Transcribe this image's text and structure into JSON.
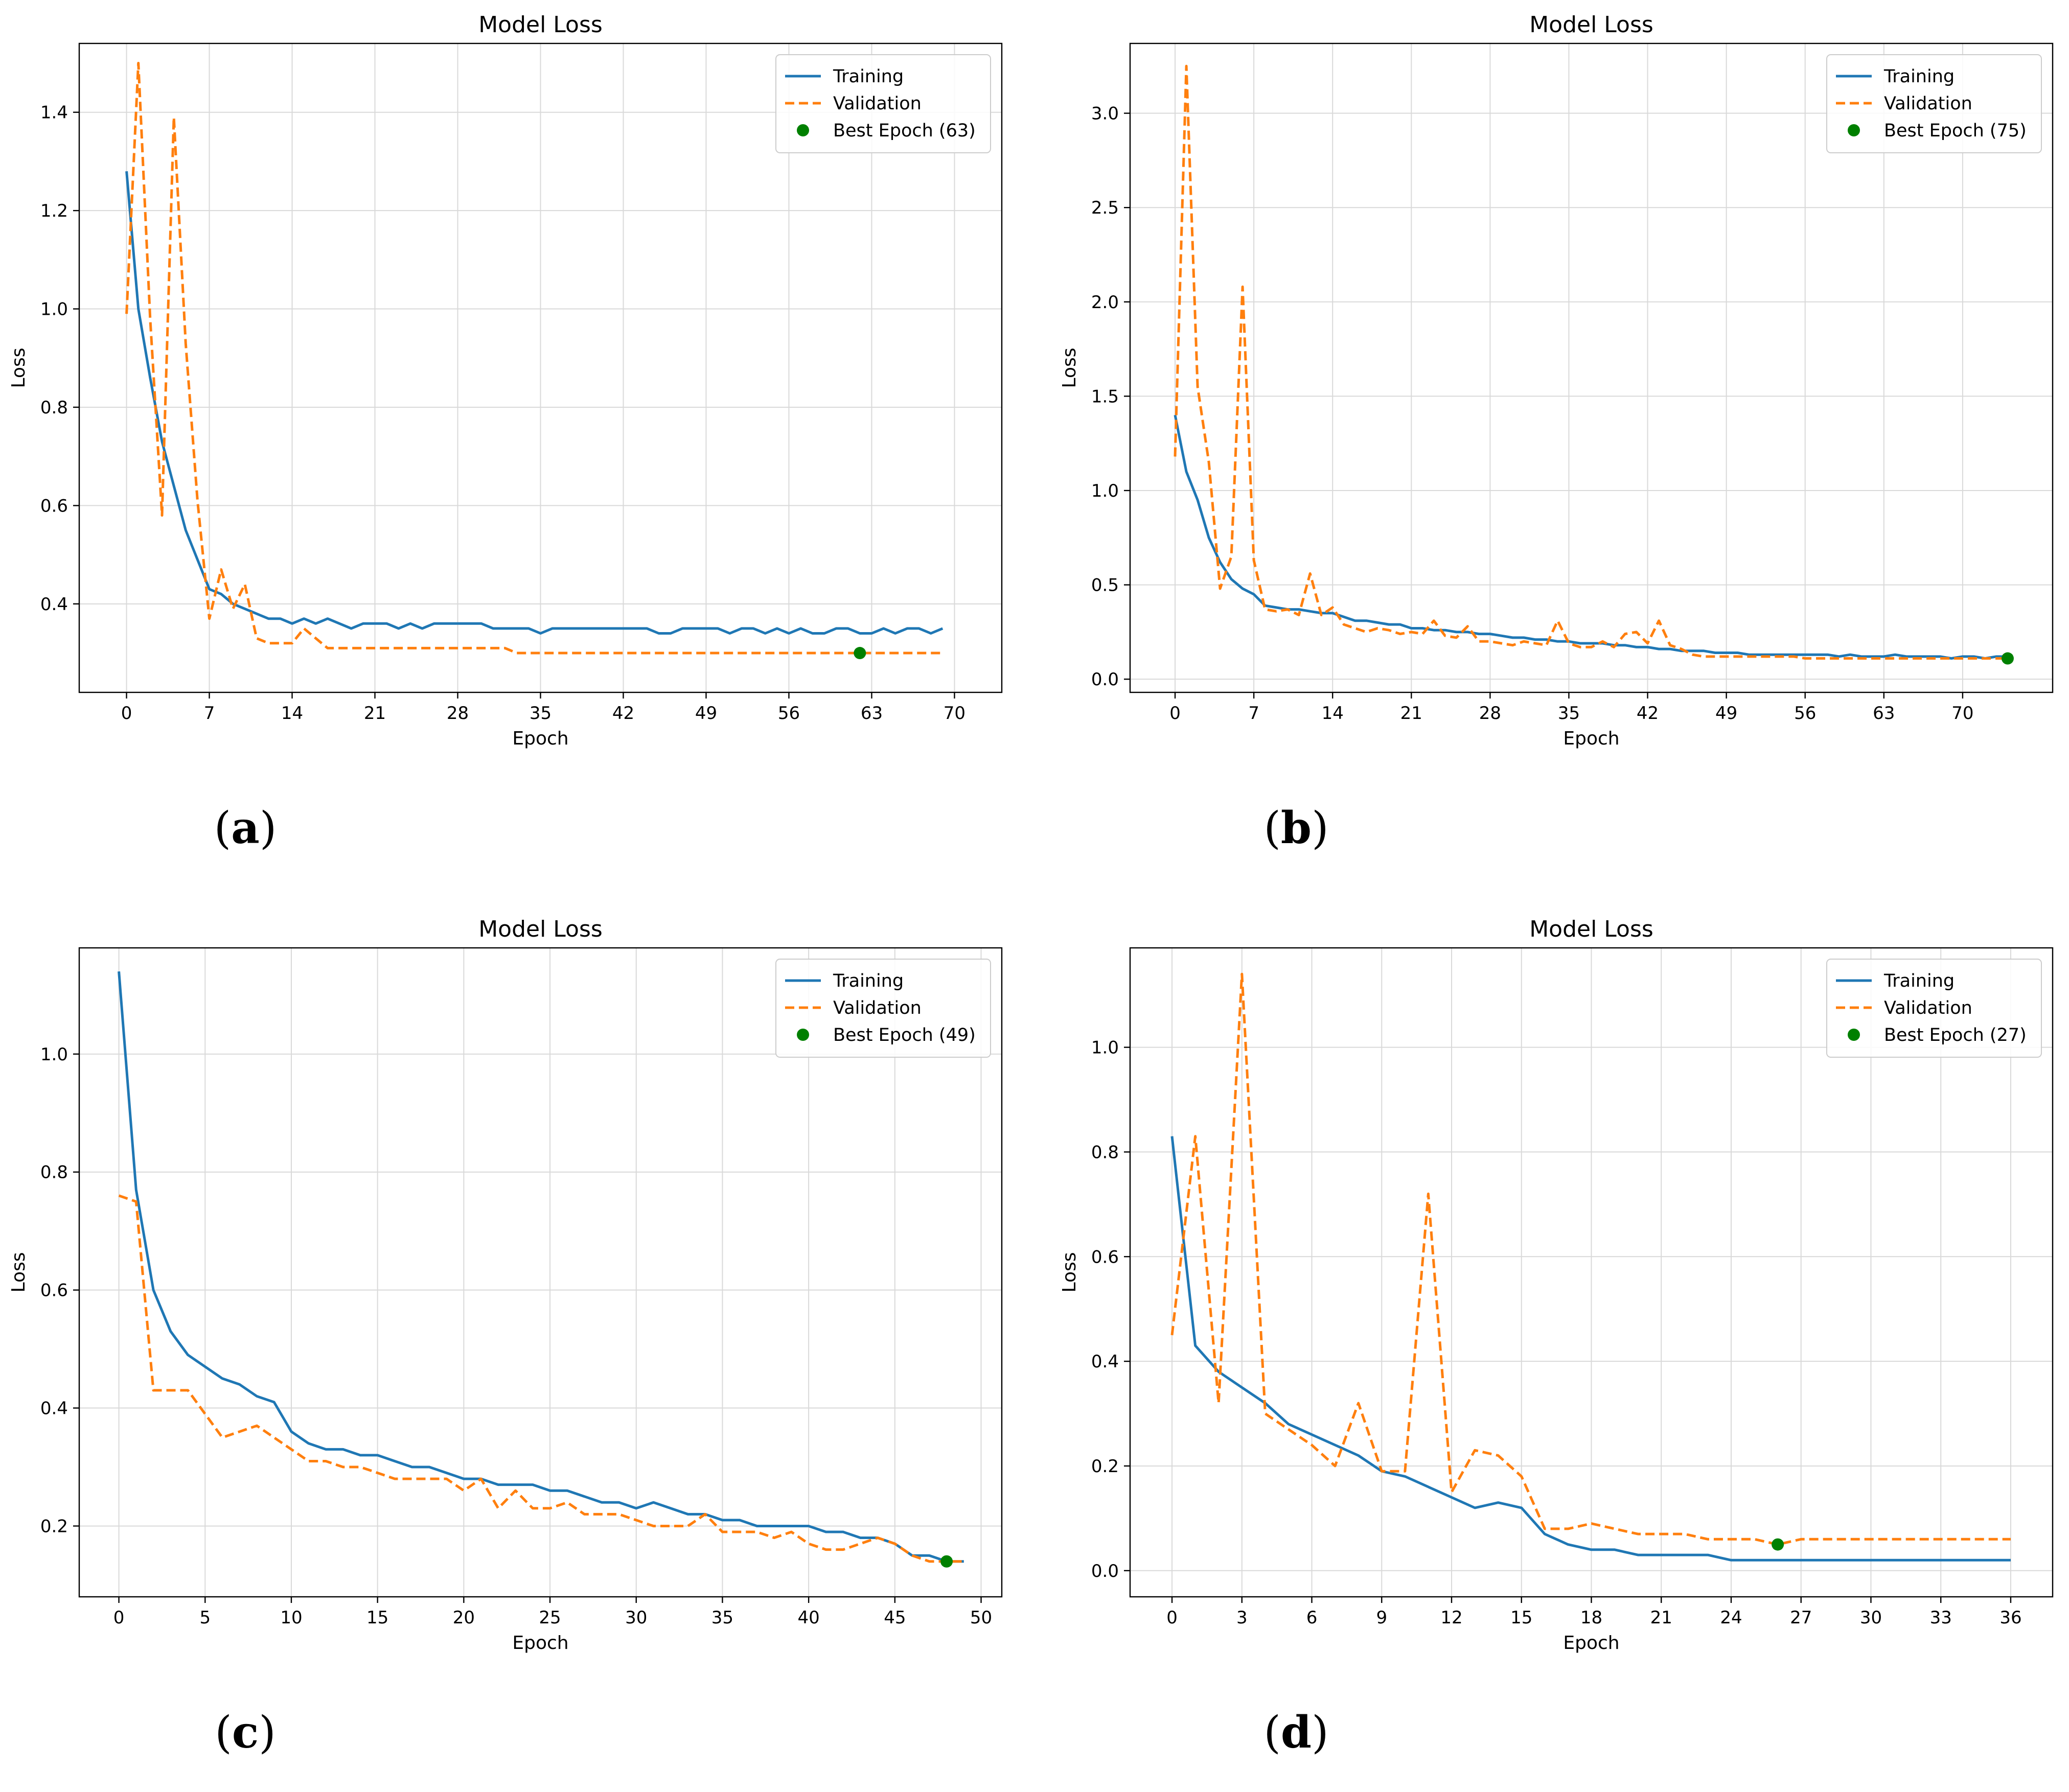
{
  "colors": {
    "training": "#1f77b4",
    "validation": "#ff7f0e",
    "best": "#008000"
  },
  "chart_data": [
    {
      "id": "a",
      "caption": "a",
      "type": "line",
      "title": "Model Loss",
      "xlabel": "Epoch",
      "ylabel": "Loss",
      "xlim": [
        -4,
        74
      ],
      "ylim": [
        0.22,
        1.54
      ],
      "xticks": [
        0,
        7,
        14,
        21,
        28,
        35,
        42,
        49,
        56,
        63,
        70
      ],
      "yticks": [
        0.4,
        0.6,
        0.8,
        1.0,
        1.2,
        1.4
      ],
      "ytick_decimals": 1,
      "legend": {
        "training": "Training",
        "validation": "Validation",
        "best": "Best Epoch (63)"
      },
      "series": [
        {
          "name": "Training",
          "values": [
            1.28,
            1.0,
            0.86,
            0.73,
            0.64,
            0.55,
            0.49,
            0.43,
            0.42,
            0.4,
            0.39,
            0.38,
            0.37,
            0.37,
            0.36,
            0.37,
            0.36,
            0.37,
            0.36,
            0.35,
            0.36,
            0.36,
            0.36,
            0.35,
            0.36,
            0.35,
            0.36,
            0.36,
            0.36,
            0.36,
            0.36,
            0.35,
            0.35,
            0.35,
            0.35,
            0.34,
            0.35,
            0.35,
            0.35,
            0.35,
            0.35,
            0.35,
            0.35,
            0.35,
            0.35,
            0.34,
            0.34,
            0.35,
            0.35,
            0.35,
            0.35,
            0.34,
            0.35,
            0.35,
            0.34,
            0.35,
            0.34,
            0.35,
            0.34,
            0.34,
            0.35,
            0.35,
            0.34,
            0.34,
            0.35,
            0.34,
            0.35,
            0.35,
            0.34,
            0.35
          ]
        },
        {
          "name": "Validation",
          "values": [
            0.99,
            1.5,
            0.98,
            0.58,
            1.39,
            0.93,
            0.61,
            0.37,
            0.47,
            0.39,
            0.44,
            0.33,
            0.32,
            0.32,
            0.32,
            0.35,
            0.33,
            0.31,
            0.31,
            0.31,
            0.31,
            0.31,
            0.31,
            0.31,
            0.31,
            0.31,
            0.31,
            0.31,
            0.31,
            0.31,
            0.31,
            0.31,
            0.31,
            0.3,
            0.3,
            0.3,
            0.3,
            0.3,
            0.3,
            0.3,
            0.3,
            0.3,
            0.3,
            0.3,
            0.3,
            0.3,
            0.3,
            0.3,
            0.3,
            0.3,
            0.3,
            0.3,
            0.3,
            0.3,
            0.3,
            0.3,
            0.3,
            0.3,
            0.3,
            0.3,
            0.3,
            0.3,
            0.3,
            0.3,
            0.3,
            0.3,
            0.3,
            0.3,
            0.3,
            0.3
          ]
        }
      ],
      "best_epoch": {
        "x": 62,
        "y": 0.3
      }
    },
    {
      "id": "b",
      "caption": "b",
      "type": "line",
      "title": "Model Loss",
      "xlabel": "Epoch",
      "ylabel": "Loss",
      "xlim": [
        -4,
        78
      ],
      "ylim": [
        -0.07,
        3.37
      ],
      "xticks": [
        0,
        7,
        14,
        21,
        28,
        35,
        42,
        49,
        56,
        63,
        70
      ],
      "yticks": [
        0.0,
        0.5,
        1.0,
        1.5,
        2.0,
        2.5,
        3.0
      ],
      "ytick_decimals": 1,
      "legend": {
        "training": "Training",
        "validation": "Validation",
        "best": "Best Epoch (75)"
      },
      "series": [
        {
          "name": "Training",
          "values": [
            1.4,
            1.1,
            0.95,
            0.75,
            0.62,
            0.53,
            0.48,
            0.45,
            0.39,
            0.38,
            0.37,
            0.37,
            0.36,
            0.35,
            0.35,
            0.33,
            0.31,
            0.31,
            0.3,
            0.29,
            0.29,
            0.27,
            0.27,
            0.26,
            0.26,
            0.25,
            0.25,
            0.24,
            0.24,
            0.23,
            0.22,
            0.22,
            0.21,
            0.21,
            0.2,
            0.2,
            0.19,
            0.19,
            0.19,
            0.18,
            0.18,
            0.17,
            0.17,
            0.16,
            0.16,
            0.15,
            0.15,
            0.15,
            0.14,
            0.14,
            0.14,
            0.13,
            0.13,
            0.13,
            0.13,
            0.13,
            0.13,
            0.13,
            0.13,
            0.12,
            0.13,
            0.12,
            0.12,
            0.12,
            0.13,
            0.12,
            0.12,
            0.12,
            0.12,
            0.11,
            0.12,
            0.12,
            0.11,
            0.12,
            0.12
          ]
        },
        {
          "name": "Validation",
          "values": [
            1.18,
            3.25,
            1.55,
            1.15,
            0.48,
            0.65,
            2.08,
            0.63,
            0.37,
            0.36,
            0.37,
            0.34,
            0.56,
            0.34,
            0.38,
            0.29,
            0.27,
            0.25,
            0.27,
            0.26,
            0.24,
            0.25,
            0.24,
            0.31,
            0.23,
            0.22,
            0.28,
            0.2,
            0.2,
            0.19,
            0.18,
            0.2,
            0.19,
            0.18,
            0.31,
            0.19,
            0.17,
            0.17,
            0.2,
            0.17,
            0.24,
            0.25,
            0.19,
            0.31,
            0.18,
            0.16,
            0.13,
            0.12,
            0.12,
            0.12,
            0.12,
            0.12,
            0.12,
            0.12,
            0.12,
            0.12,
            0.11,
            0.11,
            0.11,
            0.11,
            0.11,
            0.11,
            0.11,
            0.11,
            0.11,
            0.11,
            0.11,
            0.11,
            0.11,
            0.11,
            0.11,
            0.11,
            0.11,
            0.11,
            0.11
          ]
        }
      ],
      "best_epoch": {
        "x": 74,
        "y": 0.11
      }
    },
    {
      "id": "c",
      "caption": "c",
      "type": "line",
      "title": "Model Loss",
      "xlabel": "Epoch",
      "ylabel": "Loss",
      "xlim": [
        -2.3,
        51.2
      ],
      "ylim": [
        0.08,
        1.18
      ],
      "xticks": [
        0,
        5,
        10,
        15,
        20,
        25,
        30,
        35,
        40,
        45,
        50
      ],
      "yticks": [
        0.2,
        0.4,
        0.6,
        0.8,
        1.0
      ],
      "ytick_decimals": 1,
      "legend": {
        "training": "Training",
        "validation": "Validation",
        "best": "Best Epoch (49)"
      },
      "series": [
        {
          "name": "Training",
          "values": [
            1.14,
            0.77,
            0.6,
            0.53,
            0.49,
            0.47,
            0.45,
            0.44,
            0.42,
            0.41,
            0.36,
            0.34,
            0.33,
            0.33,
            0.32,
            0.32,
            0.31,
            0.3,
            0.3,
            0.29,
            0.28,
            0.28,
            0.27,
            0.27,
            0.27,
            0.26,
            0.26,
            0.25,
            0.24,
            0.24,
            0.23,
            0.24,
            0.23,
            0.22,
            0.22,
            0.21,
            0.21,
            0.2,
            0.2,
            0.2,
            0.2,
            0.19,
            0.19,
            0.18,
            0.18,
            0.17,
            0.15,
            0.15,
            0.14,
            0.14
          ]
        },
        {
          "name": "Validation",
          "values": [
            0.76,
            0.75,
            0.43,
            0.43,
            0.43,
            0.39,
            0.35,
            0.36,
            0.37,
            0.35,
            0.33,
            0.31,
            0.31,
            0.3,
            0.3,
            0.29,
            0.28,
            0.28,
            0.28,
            0.28,
            0.26,
            0.28,
            0.23,
            0.26,
            0.23,
            0.23,
            0.24,
            0.22,
            0.22,
            0.22,
            0.21,
            0.2,
            0.2,
            0.2,
            0.22,
            0.19,
            0.19,
            0.19,
            0.18,
            0.19,
            0.17,
            0.16,
            0.16,
            0.17,
            0.18,
            0.17,
            0.15,
            0.14,
            0.14,
            0.14
          ]
        }
      ],
      "best_epoch": {
        "x": 48,
        "y": 0.14
      }
    },
    {
      "id": "d",
      "caption": "d",
      "type": "line",
      "title": "Model Loss",
      "xlabel": "Epoch",
      "ylabel": "Loss",
      "xlim": [
        -1.8,
        37.8
      ],
      "ylim": [
        -0.05,
        1.19
      ],
      "xticks": [
        0,
        3,
        6,
        9,
        12,
        15,
        18,
        21,
        24,
        27,
        30,
        33,
        36
      ],
      "yticks": [
        0.0,
        0.2,
        0.4,
        0.6,
        0.8,
        1.0
      ],
      "ytick_decimals": 1,
      "legend": {
        "training": "Training",
        "validation": "Validation",
        "best": "Best Epoch (27)"
      },
      "series": [
        {
          "name": "Training",
          "values": [
            0.83,
            0.43,
            0.38,
            0.35,
            0.32,
            0.28,
            0.26,
            0.24,
            0.22,
            0.19,
            0.18,
            0.16,
            0.14,
            0.12,
            0.13,
            0.12,
            0.07,
            0.05,
            0.04,
            0.04,
            0.03,
            0.03,
            0.03,
            0.03,
            0.02,
            0.02,
            0.02,
            0.02,
            0.02,
            0.02,
            0.02,
            0.02,
            0.02,
            0.02,
            0.02,
            0.02,
            0.02
          ]
        },
        {
          "name": "Validation",
          "values": [
            0.45,
            0.83,
            0.32,
            1.14,
            0.3,
            0.27,
            0.24,
            0.2,
            0.32,
            0.19,
            0.19,
            0.72,
            0.15,
            0.23,
            0.22,
            0.18,
            0.08,
            0.08,
            0.09,
            0.08,
            0.07,
            0.07,
            0.07,
            0.06,
            0.06,
            0.06,
            0.05,
            0.06,
            0.06,
            0.06,
            0.06,
            0.06,
            0.06,
            0.06,
            0.06,
            0.06,
            0.06
          ]
        }
      ],
      "best_epoch": {
        "x": 26,
        "y": 0.05
      }
    }
  ]
}
